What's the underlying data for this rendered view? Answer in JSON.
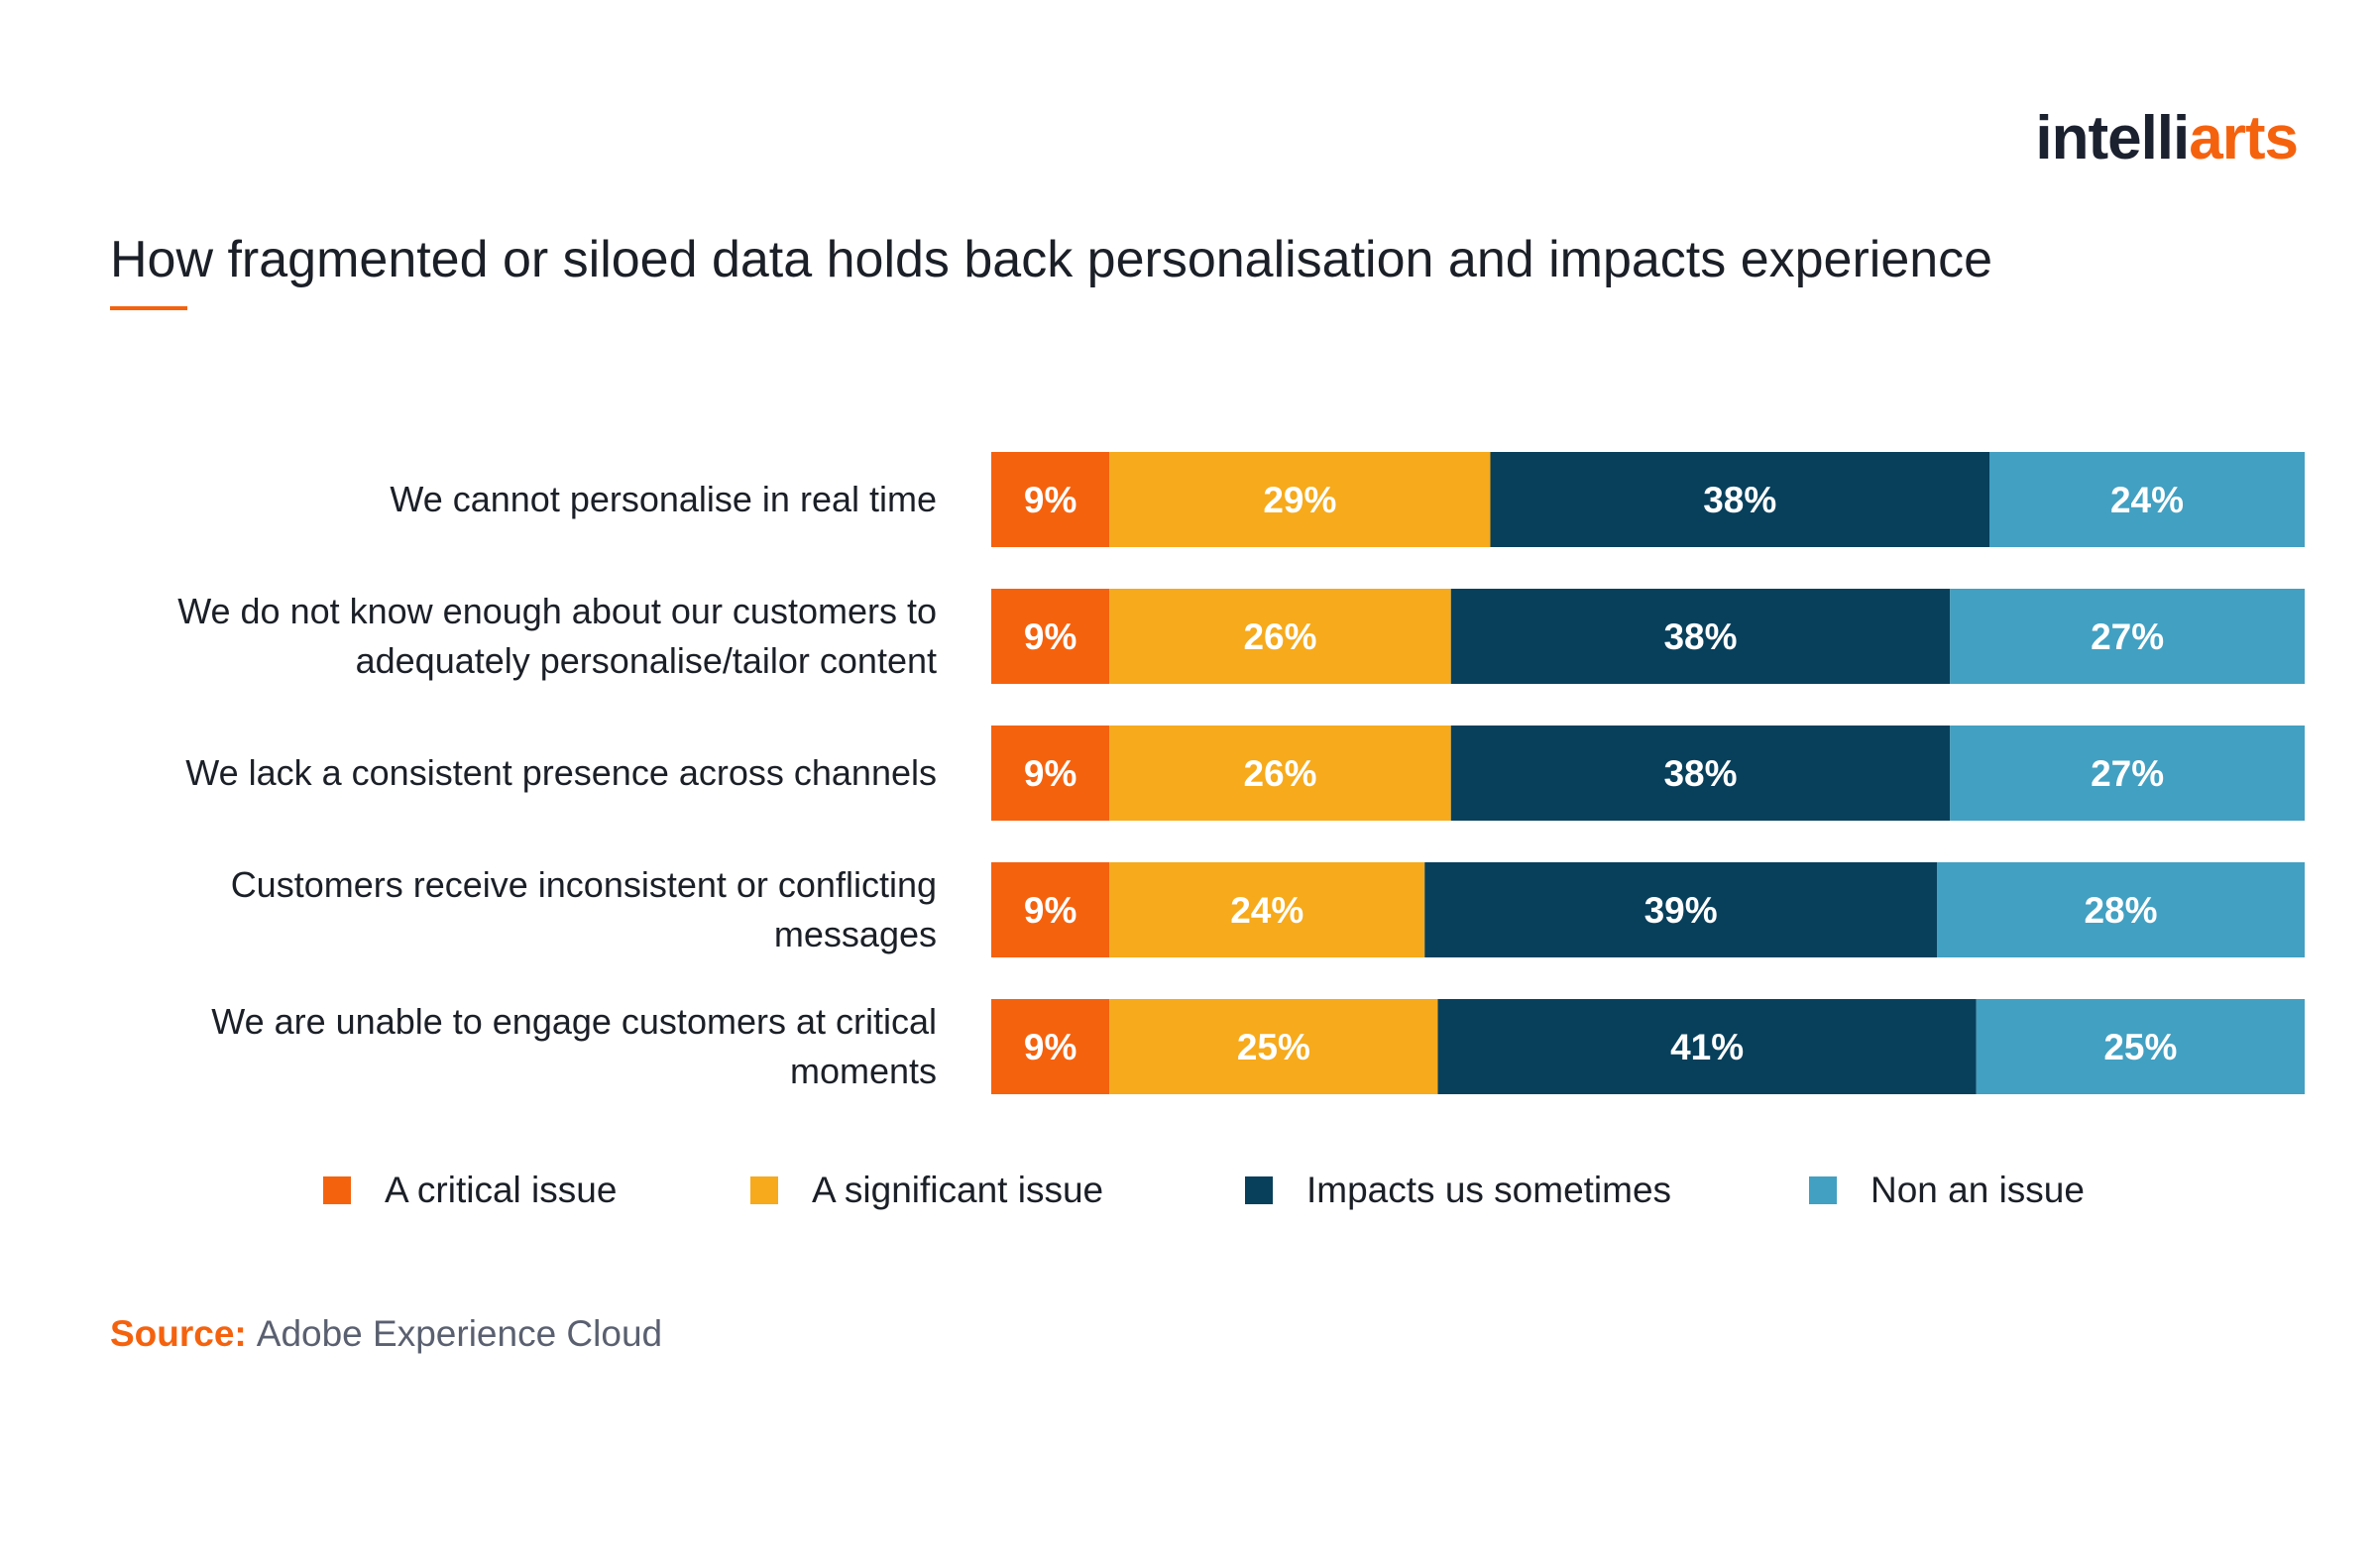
{
  "logo": {
    "part1": "intelli",
    "part2": "arts"
  },
  "title": "How fragmented or siloed data holds back personalisation and impacts experience",
  "source": {
    "label": "Source:",
    "text": "Adobe Experience Cloud"
  },
  "chart_data": {
    "type": "bar",
    "orientation": "horizontal",
    "stacked": true,
    "title": "How fragmented or siloed data holds back personalisation and impacts experience",
    "xlabel": "",
    "ylabel": "",
    "xlim": [
      0,
      100
    ],
    "grid": false,
    "legend_position": "bottom",
    "categories": [
      [
        "We cannot personalise in real time"
      ],
      [
        "We do not know enough about our customers to",
        "adequately personalise/tailor content"
      ],
      [
        "We lack a consistent presence across channels"
      ],
      [
        "Customers receive inconsistent or conflicting",
        "messages"
      ],
      [
        "We are unable to engage customers at critical",
        "moments"
      ]
    ],
    "series": [
      {
        "name": "A critical issue",
        "color": "#f5620e",
        "values": [
          9,
          9,
          9,
          9,
          9
        ]
      },
      {
        "name": "A significant issue",
        "color": "#f6aa1c",
        "values": [
          29,
          26,
          26,
          24,
          25
        ]
      },
      {
        "name": "Impacts us sometimes",
        "color": "#08405c",
        "values": [
          38,
          38,
          38,
          39,
          41
        ]
      },
      {
        "name": "Non an issue",
        "color": "#42a0c2",
        "values": [
          24,
          27,
          27,
          28,
          25
        ]
      }
    ]
  }
}
